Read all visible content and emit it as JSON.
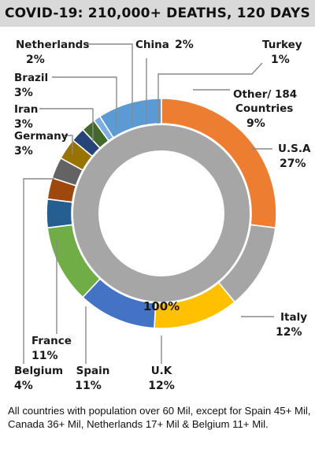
{
  "chart_data": {
    "type": "pie",
    "title": "COVID-19: 210,000+ DEATHS, 120 DAYS",
    "center_label": "100%",
    "slices": [
      {
        "label": "U.S.A",
        "value": 27,
        "display": "27%",
        "color": "#ed7d31"
      },
      {
        "label": "Italy",
        "value": 12,
        "display": "12%",
        "color": "#a5a5a5"
      },
      {
        "label": "U.K",
        "value": 12,
        "display": "12%",
        "color": "#ffc000"
      },
      {
        "label": "Spain",
        "value": 11,
        "display": "11%",
        "color": "#4472c4"
      },
      {
        "label": "France",
        "value": 11,
        "display": "11%",
        "color": "#70ad47"
      },
      {
        "label": "Belgium",
        "value": 4,
        "display": "4%",
        "color": "#255e91"
      },
      {
        "label": "Germany",
        "value": 3,
        "display": "3%",
        "color": "#9e480e"
      },
      {
        "label": "Iran",
        "value": 3,
        "display": "3%",
        "color": "#636363"
      },
      {
        "label": "Brazil",
        "value": 3,
        "display": "3%",
        "color": "#997300"
      },
      {
        "label": "Netherlands",
        "value": 2,
        "display": "2%",
        "color": "#264478"
      },
      {
        "label": "China",
        "value": 2,
        "display": "2%",
        "color": "#43682b"
      },
      {
        "label": "Turkey",
        "value": 1,
        "display": "1%",
        "color": "#7cafdd"
      },
      {
        "label": "Other/ 184 Countries",
        "value": 9,
        "display": "9%",
        "color": "#5b9bd5"
      }
    ],
    "inner_ring_color": "#a6a6a6"
  },
  "footnote": "All countries with population over 60 Mil, except for Spain 45+ Mil, Canada 36+ Mil, Netherlands 17+ Mil & Belgium 11+ Mil."
}
